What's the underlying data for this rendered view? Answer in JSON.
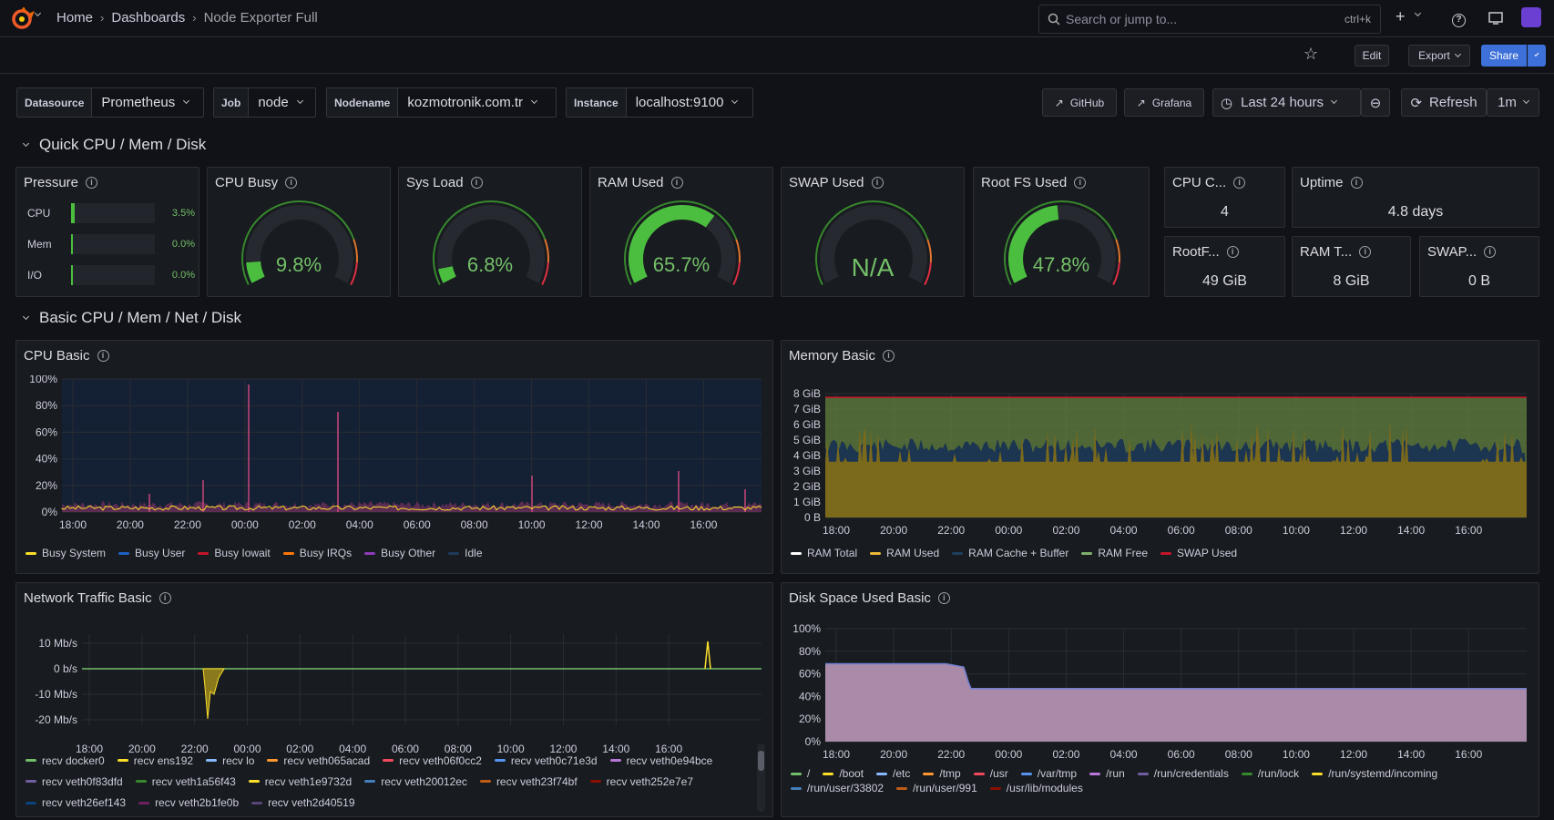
{
  "breadcrumb": {
    "home": "Home",
    "dashboards": "Dashboards",
    "current": "Node Exporter Full"
  },
  "search": {
    "placeholder": "Search or jump to...",
    "shortcut": "ctrl+k"
  },
  "toolbar": {
    "edit": "Edit",
    "export": "Export",
    "share": "Share"
  },
  "variables": [
    {
      "label": "Datasource",
      "value": "Prometheus"
    },
    {
      "label": "Job",
      "value": "node"
    },
    {
      "label": "Nodename",
      "value": "kozmotronik.com.tr"
    },
    {
      "label": "Instance",
      "value": "localhost:9100"
    }
  ],
  "links": {
    "github": "GitHub",
    "grafana": "Grafana"
  },
  "time": {
    "range": "Last 24 hours",
    "refresh": "Refresh",
    "interval": "1m"
  },
  "sections": {
    "quick": "Quick CPU / Mem / Disk",
    "basic": "Basic CPU / Mem / Net / Disk"
  },
  "pressure": {
    "title": "Pressure",
    "rows": [
      {
        "name": "CPU",
        "value": "3.5%",
        "level": 0.035
      },
      {
        "name": "Mem",
        "value": "0.0%",
        "level": 0
      },
      {
        "name": "I/O",
        "value": "0.0%",
        "level": 0
      }
    ]
  },
  "gauges": [
    {
      "title": "CPU Busy",
      "value": "9.8%",
      "level": 0.098,
      "color": "#73bf69"
    },
    {
      "title": "Sys Load",
      "value": "6.8%",
      "level": 0.068,
      "color": "#73bf69"
    },
    {
      "title": "RAM Used",
      "value": "65.7%",
      "level": 0.657,
      "color": "#73bf69"
    },
    {
      "title": "SWAP Used",
      "value": "N/A",
      "level": 0,
      "color": "#73bf69"
    },
    {
      "title": "Root FS Used",
      "value": "47.8%",
      "level": 0.478,
      "color": "#73bf69"
    }
  ],
  "stats": {
    "cpu_cores": {
      "title": "CPU C...",
      "value": "4"
    },
    "uptime": {
      "title": "Uptime",
      "value": "4.8 days"
    },
    "rootfs": {
      "title": "RootF...",
      "value": "49 GiB"
    },
    "ram_total": {
      "title": "RAM T...",
      "value": "8 GiB"
    },
    "swap_total": {
      "title": "SWAP...",
      "value": "0 B"
    }
  },
  "panels": {
    "cpu_basic": {
      "title": "CPU Basic",
      "yticks": [
        "100%",
        "80%",
        "60%",
        "40%",
        "20%",
        "0%"
      ],
      "xticks": [
        "18:00",
        "20:00",
        "22:00",
        "00:00",
        "02:00",
        "04:00",
        "06:00",
        "08:00",
        "10:00",
        "12:00",
        "14:00",
        "16:00"
      ],
      "legend": [
        {
          "name": "Busy System",
          "color": "#fade2a"
        },
        {
          "name": "Busy User",
          "color": "#1f60c4"
        },
        {
          "name": "Busy Iowait",
          "color": "#c4162a"
        },
        {
          "name": "Busy IRQs",
          "color": "#ff780a"
        },
        {
          "name": "Busy Other",
          "color": "#8f3bb8"
        },
        {
          "name": "Idle",
          "color": "#1f3a5a"
        }
      ]
    },
    "mem_basic": {
      "title": "Memory Basic",
      "yticks": [
        "8 GiB",
        "7 GiB",
        "6 GiB",
        "5 GiB",
        "4 GiB",
        "3 GiB",
        "2 GiB",
        "1 GiB",
        "0 B"
      ],
      "xticks": [
        "18:00",
        "20:00",
        "22:00",
        "00:00",
        "02:00",
        "04:00",
        "06:00",
        "08:00",
        "10:00",
        "12:00",
        "14:00",
        "16:00"
      ],
      "legend": [
        {
          "name": "RAM Total",
          "color": "#ffffff"
        },
        {
          "name": "RAM Used",
          "color": "#eab839"
        },
        {
          "name": "RAM Cache + Buffer",
          "color": "#1f3f5f"
        },
        {
          "name": "RAM Free",
          "color": "#7eb26d"
        },
        {
          "name": "SWAP Used",
          "color": "#c4162a"
        }
      ]
    },
    "net_basic": {
      "title": "Network Traffic Basic",
      "yticks": [
        "10 Mb/s",
        "0 b/s",
        "-10 Mb/s",
        "-20 Mb/s"
      ],
      "xticks": [
        "18:00",
        "20:00",
        "22:00",
        "00:00",
        "02:00",
        "04:00",
        "06:00",
        "08:00",
        "10:00",
        "12:00",
        "14:00",
        "16:00"
      ],
      "legend": [
        {
          "name": "recv docker0",
          "color": "#73bf69"
        },
        {
          "name": "recv ens192",
          "color": "#fade2a"
        },
        {
          "name": "recv lo",
          "color": "#8ab8ff"
        },
        {
          "name": "recv veth065acad",
          "color": "#ff9830"
        },
        {
          "name": "recv veth06f0cc2",
          "color": "#f2495c"
        },
        {
          "name": "recv veth0c71e3d",
          "color": "#5794f2"
        },
        {
          "name": "recv veth0e94bce",
          "color": "#b877d9"
        },
        {
          "name": "recv veth0f83dfd",
          "color": "#705da0"
        },
        {
          "name": "recv veth1a56f43",
          "color": "#37872d"
        },
        {
          "name": "recv veth1e9732d",
          "color": "#fade2a"
        },
        {
          "name": "recv veth20012ec",
          "color": "#447ebc"
        },
        {
          "name": "recv veth23f74bf",
          "color": "#c15c17"
        },
        {
          "name": "recv veth252e7e7",
          "color": "#890f02"
        },
        {
          "name": "recv veth26ef143",
          "color": "#0a437c"
        },
        {
          "name": "recv veth2b1fe0b",
          "color": "#6d1f62"
        },
        {
          "name": "recv veth2d40519",
          "color": "#584477"
        }
      ]
    },
    "disk_basic": {
      "title": "Disk Space Used Basic",
      "yticks": [
        "100%",
        "80%",
        "60%",
        "40%",
        "20%",
        "0%"
      ],
      "xticks": [
        "18:00",
        "20:00",
        "22:00",
        "00:00",
        "02:00",
        "04:00",
        "06:00",
        "08:00",
        "10:00",
        "12:00",
        "14:00",
        "16:00"
      ],
      "legend": [
        {
          "name": "/",
          "color": "#73bf69"
        },
        {
          "name": "/boot",
          "color": "#fade2a"
        },
        {
          "name": "/etc",
          "color": "#8ab8ff"
        },
        {
          "name": "/tmp",
          "color": "#ff9830"
        },
        {
          "name": "/usr",
          "color": "#f2495c"
        },
        {
          "name": "/var/tmp",
          "color": "#5794f2"
        },
        {
          "name": "/run",
          "color": "#b877d9"
        },
        {
          "name": "/run/credentials",
          "color": "#705da0"
        },
        {
          "name": "/run/lock",
          "color": "#37872d"
        },
        {
          "name": "/run/systemd/incoming",
          "color": "#fade2a"
        },
        {
          "name": "/run/user/33802",
          "color": "#447ebc"
        },
        {
          "name": "/run/user/991",
          "color": "#c15c17"
        },
        {
          "name": "/usr/lib/modules",
          "color": "#890f02"
        }
      ]
    }
  }
}
